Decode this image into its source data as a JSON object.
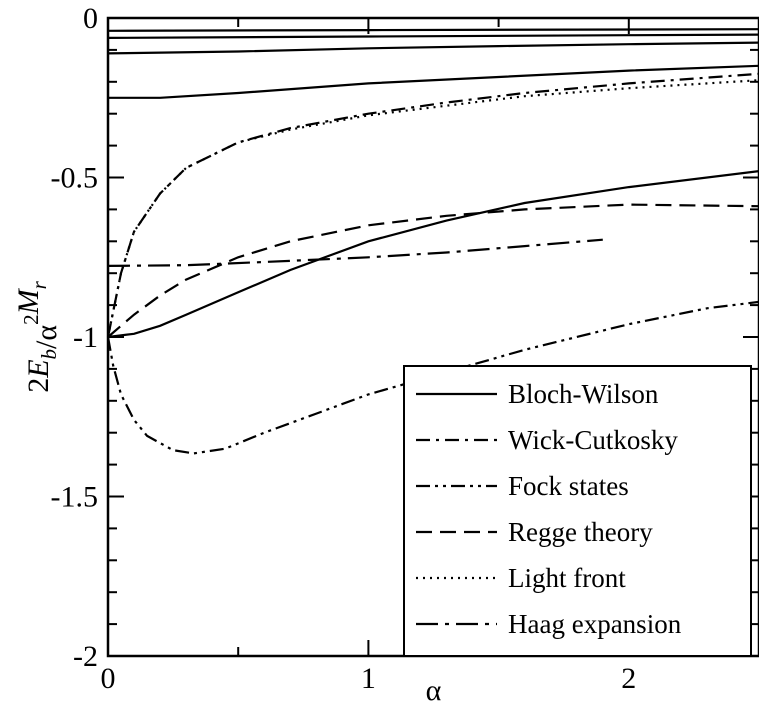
{
  "chart_data": {
    "type": "line",
    "title": "",
    "xlabel": "α",
    "ylabel": "",
    "xlim": [
      0,
      2.5
    ],
    "ylim": [
      -2,
      0
    ],
    "grid": false,
    "legend_position": "bottom-right",
    "x_ticks": [
      {
        "value": 0,
        "label": "0"
      },
      {
        "value": 1,
        "label": "1"
      },
      {
        "value": 2,
        "label": "2"
      }
    ],
    "y_ticks": [
      {
        "value": 0,
        "label": "0"
      },
      {
        "value": -0.5,
        "label": "-0.5"
      },
      {
        "value": -1,
        "label": "-1"
      },
      {
        "value": -1.5,
        "label": "-1.5"
      },
      {
        "value": -2,
        "label": "-2"
      }
    ],
    "series": [
      {
        "name": "Bloch-Wilson",
        "style": "solid",
        "in_legend": true,
        "points": [
          [
            0,
            -1.0
          ],
          [
            0.1,
            -0.99
          ],
          [
            0.2,
            -0.965
          ],
          [
            0.3,
            -0.93
          ],
          [
            0.5,
            -0.86
          ],
          [
            0.7,
            -0.79
          ],
          [
            1.0,
            -0.7
          ],
          [
            1.3,
            -0.635
          ],
          [
            1.6,
            -0.58
          ],
          [
            2.0,
            -0.53
          ],
          [
            2.5,
            -0.48
          ]
        ]
      },
      {
        "name": "",
        "style": "solid",
        "in_legend": false,
        "points": [
          [
            0,
            -0.25
          ],
          [
            0.2,
            -0.25
          ],
          [
            0.5,
            -0.235
          ],
          [
            1.0,
            -0.205
          ],
          [
            1.5,
            -0.185
          ],
          [
            2.0,
            -0.165
          ],
          [
            2.5,
            -0.15
          ]
        ]
      },
      {
        "name": "",
        "style": "solid",
        "in_legend": false,
        "points": [
          [
            0,
            -0.111
          ],
          [
            0.5,
            -0.105
          ],
          [
            1.0,
            -0.095
          ],
          [
            1.5,
            -0.088
          ],
          [
            2.0,
            -0.082
          ],
          [
            2.5,
            -0.077
          ]
        ]
      },
      {
        "name": "",
        "style": "solid",
        "in_legend": false,
        "points": [
          [
            0,
            -0.0625
          ],
          [
            1.0,
            -0.058
          ],
          [
            2.0,
            -0.054
          ],
          [
            2.5,
            -0.052
          ]
        ]
      },
      {
        "name": "",
        "style": "solid",
        "in_legend": false,
        "points": [
          [
            0,
            -0.04
          ],
          [
            1.0,
            -0.038
          ],
          [
            2.5,
            -0.035
          ]
        ]
      },
      {
        "name": "Wick-Cutkosky",
        "style": "dashdot",
        "in_legend": true,
        "points": [
          [
            0,
            -1.0
          ],
          [
            0.02,
            -0.92
          ],
          [
            0.05,
            -0.8
          ],
          [
            0.1,
            -0.67
          ],
          [
            0.2,
            -0.55
          ],
          [
            0.3,
            -0.47
          ],
          [
            0.5,
            -0.39
          ],
          [
            0.7,
            -0.345
          ],
          [
            1.0,
            -0.3
          ],
          [
            1.3,
            -0.265
          ],
          [
            1.6,
            -0.235
          ],
          [
            2.0,
            -0.205
          ],
          [
            2.5,
            -0.175
          ]
        ]
      },
      {
        "name": "Fock states",
        "style": "dashdotdot",
        "in_legend": true,
        "points": [
          [
            0,
            -1.0
          ],
          [
            0.02,
            -1.09
          ],
          [
            0.05,
            -1.18
          ],
          [
            0.1,
            -1.26
          ],
          [
            0.15,
            -1.31
          ],
          [
            0.25,
            -1.355
          ],
          [
            0.33,
            -1.365
          ],
          [
            0.45,
            -1.35
          ],
          [
            0.6,
            -1.3
          ],
          [
            0.8,
            -1.24
          ],
          [
            1.0,
            -1.18
          ],
          [
            1.3,
            -1.11
          ],
          [
            1.6,
            -1.04
          ],
          [
            2.0,
            -0.96
          ],
          [
            2.3,
            -0.91
          ],
          [
            2.5,
            -0.89
          ]
        ]
      },
      {
        "name": "Regge theory",
        "style": "dashed",
        "in_legend": true,
        "points": [
          [
            0,
            -1.0
          ],
          [
            0.1,
            -0.93
          ],
          [
            0.2,
            -0.87
          ],
          [
            0.3,
            -0.82
          ],
          [
            0.5,
            -0.75
          ],
          [
            0.7,
            -0.7
          ],
          [
            1.0,
            -0.65
          ],
          [
            1.3,
            -0.62
          ],
          [
            1.6,
            -0.6
          ],
          [
            2.0,
            -0.585
          ],
          [
            2.5,
            -0.59
          ]
        ]
      },
      {
        "name": "Light front",
        "style": "dotted",
        "in_legend": true,
        "points": [
          [
            0,
            -1.0
          ],
          [
            0.02,
            -0.92
          ],
          [
            0.05,
            -0.8
          ],
          [
            0.1,
            -0.67
          ],
          [
            0.2,
            -0.55
          ],
          [
            0.3,
            -0.47
          ],
          [
            0.5,
            -0.39
          ],
          [
            0.7,
            -0.35
          ],
          [
            1.0,
            -0.305
          ],
          [
            1.3,
            -0.275
          ],
          [
            1.6,
            -0.245
          ],
          [
            2.0,
            -0.22
          ],
          [
            2.5,
            -0.195
          ]
        ]
      },
      {
        "name": "Haag expansion",
        "style": "longdashdot",
        "in_legend": true,
        "points": [
          [
            0,
            -0.777
          ],
          [
            0.3,
            -0.775
          ],
          [
            0.6,
            -0.765
          ],
          [
            1.0,
            -0.75
          ],
          [
            1.3,
            -0.735
          ],
          [
            1.6,
            -0.715
          ],
          [
            1.9,
            -0.695
          ]
        ]
      }
    ]
  }
}
